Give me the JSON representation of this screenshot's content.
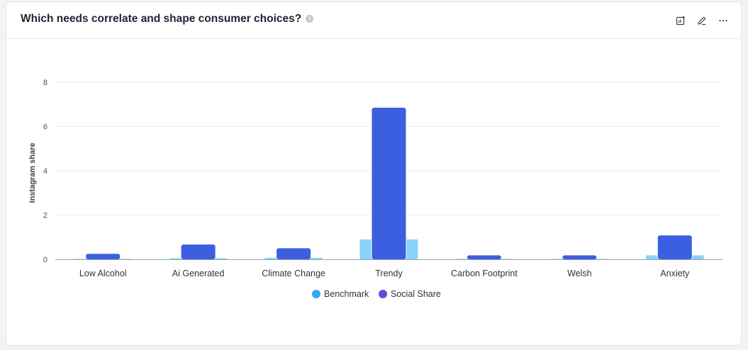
{
  "header": {
    "title": "Which needs correlate and shape consumer choices?",
    "info_icon": "info-icon",
    "actions": [
      {
        "name": "chart-settings-button",
        "icon": "chart-add-icon"
      },
      {
        "name": "edit-button",
        "icon": "pencil-icon"
      },
      {
        "name": "more-button",
        "icon": "ellipsis-icon"
      }
    ]
  },
  "colors": {
    "benchmark": "#87d3fa",
    "social_share": "#3c5fe0",
    "legend_benchmark": "#36a9f2",
    "legend_social_share": "#5b4fd9"
  },
  "chart_data": {
    "type": "bar",
    "ylabel": "Instagram share",
    "ylim": [
      0,
      8
    ],
    "yticks": [
      0,
      2,
      4,
      6,
      8
    ],
    "grid": true,
    "legend_placement": "bottom-center",
    "categories": [
      "Low Alcohol",
      "Ai Generated",
      "Climate Change",
      "Trendy",
      "Carbon Footprint",
      "Welsh",
      "Anxiety"
    ],
    "series": [
      {
        "name": "Benchmark",
        "values": [
          0.02,
          0.05,
          0.07,
          0.9,
          0.02,
          0.02,
          0.18
        ]
      },
      {
        "name": "Social Share",
        "values": [
          0.25,
          0.67,
          0.5,
          6.85,
          0.18,
          0.18,
          1.08
        ]
      }
    ]
  }
}
